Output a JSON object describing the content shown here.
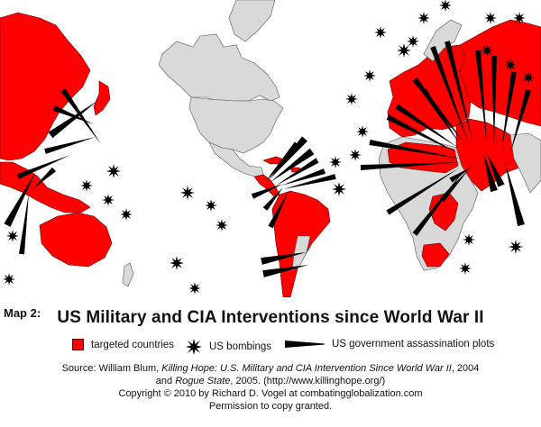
{
  "colors": {
    "targeted": "#ff0000",
    "land": "#d9d9d9",
    "border": "#555555",
    "mark": "#000000"
  },
  "caption": {
    "map_label": "Map 2:",
    "title": "US Military and CIA Interventions since World War II"
  },
  "legend": {
    "targeted": "targeted countries",
    "bombings": "US bombings",
    "assassinations": "US government assassination plots",
    "icons": [
      "red-square-icon",
      "starburst-icon",
      "wedge-icon"
    ]
  },
  "source": {
    "prefix": "Source:  William Blum, ",
    "book1": "Killing Hope: U.S. Military and CIA Intervention Since World War II",
    "mid": ", 2004",
    "and": "and ",
    "book2": "Rogue State",
    "suffix": ", 2005. (http://www.killinghope.org/)",
    "copyright": "Copyright  ©  2010 by Richard D. Vogel at combatingglobalization.com",
    "permission": "Permission to copy granted."
  }
}
